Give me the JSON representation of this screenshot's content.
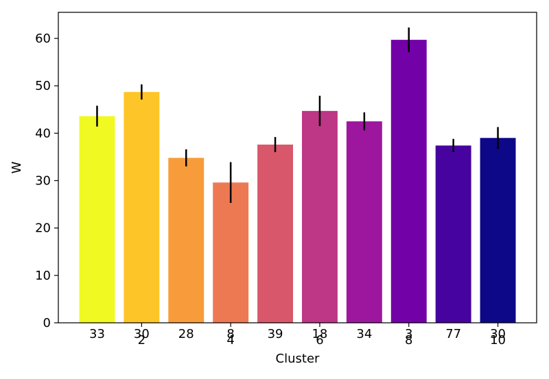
{
  "chart_data": {
    "type": "bar",
    "xlabel": "Cluster",
    "ylabel": "W",
    "ylim": [
      0,
      65.5
    ],
    "yticks": [
      0,
      10,
      20,
      30,
      40,
      50,
      60
    ],
    "x_tick_labels": [
      "2",
      "4",
      "6",
      "8",
      "10"
    ],
    "x_tick_positions": [
      2,
      4,
      6,
      8,
      10
    ],
    "bars": [
      {
        "x": 1,
        "value": 43.6,
        "error": 2.2,
        "count_label": "33",
        "color": "#f0f921"
      },
      {
        "x": 2,
        "value": 48.7,
        "error": 1.6,
        "count_label": "30",
        "color": "#fdc527"
      },
      {
        "x": 3,
        "value": 34.8,
        "error": 1.8,
        "count_label": "28",
        "color": "#f89c3b"
      },
      {
        "x": 4,
        "value": 29.6,
        "error": 4.3,
        "count_label": "8",
        "color": "#ed7953"
      },
      {
        "x": 5,
        "value": 37.6,
        "error": 1.6,
        "count_label": "39",
        "color": "#d8576b"
      },
      {
        "x": 6,
        "value": 44.7,
        "error": 3.2,
        "count_label": "18",
        "color": "#bd3786"
      },
      {
        "x": 7,
        "value": 42.5,
        "error": 1.9,
        "count_label": "34",
        "color": "#9c179e"
      },
      {
        "x": 8,
        "value": 59.7,
        "error": 2.6,
        "count_label": "3",
        "color": "#7201a8"
      },
      {
        "x": 9,
        "value": 37.4,
        "error": 1.4,
        "count_label": "77",
        "color": "#46039f"
      },
      {
        "x": 10,
        "value": 39.0,
        "error": 2.3,
        "count_label": "30",
        "color": "#0d0887"
      }
    ],
    "grid": false,
    "legend": "none"
  }
}
